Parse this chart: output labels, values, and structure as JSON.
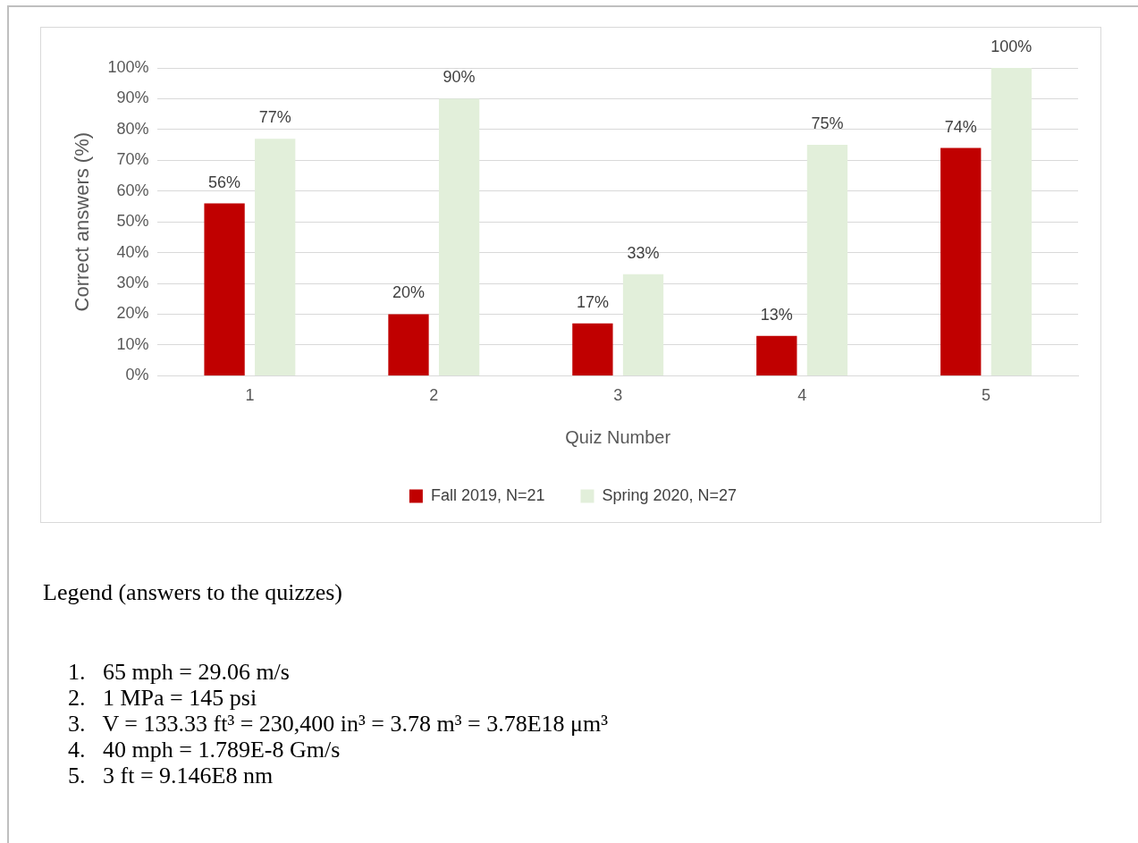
{
  "chart_data": {
    "type": "bar",
    "xlabel": "Quiz Number",
    "ylabel": "Correct answers (%)",
    "categories": [
      "1",
      "2",
      "3",
      "4",
      "5"
    ],
    "series": [
      {
        "name": "Fall 2019, N=21",
        "color": "#c00000",
        "values": [
          56,
          20,
          17,
          13,
          74
        ],
        "value_labels": [
          "56%",
          "20%",
          "17%",
          "13%",
          "74%"
        ]
      },
      {
        "name": "Spring 2020, N=27",
        "color": "#e2efda",
        "values": [
          77,
          90,
          33,
          75,
          100
        ],
        "value_labels": [
          "77%",
          "90%",
          "33%",
          "75%",
          "100%"
        ]
      }
    ],
    "ylim": [
      0,
      100
    ],
    "yticks": [
      {
        "value": 0,
        "label": "0%"
      },
      {
        "value": 10,
        "label": "10%"
      },
      {
        "value": 20,
        "label": "20%"
      },
      {
        "value": 30,
        "label": "30%"
      },
      {
        "value": 40,
        "label": "40%"
      },
      {
        "value": 50,
        "label": "50%"
      },
      {
        "value": 60,
        "label": "60%"
      },
      {
        "value": 70,
        "label": "70%"
      },
      {
        "value": 80,
        "label": "80%"
      },
      {
        "value": 90,
        "label": "90%"
      },
      {
        "value": 100,
        "label": "100%"
      }
    ],
    "grid": "y",
    "legend": "bottom",
    "annotations": [
      "Legend (answers to the quizzes)",
      "1.   65 mph = 29.06 m/s",
      "2.   1 MPa = 145 psi",
      "3.   V = 133.33 ft³ = 230,400 in³ = 3.78 m³ = 3.78E18 μm³",
      "4.   40 mph = 1.789E-8 Gm/s",
      "5.   3 ft = 9.146E8 nm"
    ]
  }
}
